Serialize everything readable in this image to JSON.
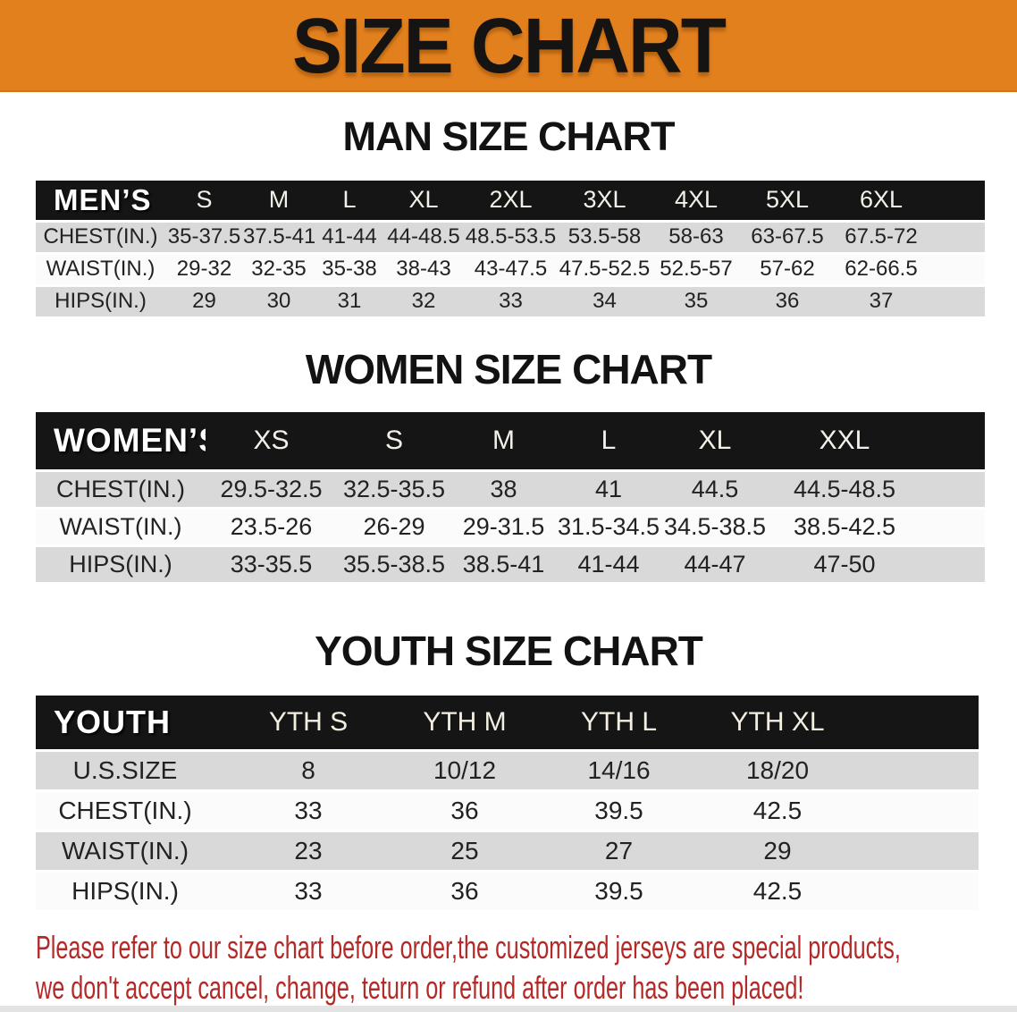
{
  "banner": {
    "title": "SIZE CHART",
    "bg_color": "#E2801E",
    "text_color": "#161412"
  },
  "sections": {
    "men_heading": "MAN SIZE CHART",
    "women_heading": "WOMEN SIZE CHART",
    "youth_heading": "YOUTH SIZE CHART"
  },
  "tables": {
    "men": {
      "header_label": "MEN’S",
      "sizes": [
        "S",
        "M",
        "L",
        "XL",
        "2XL",
        "3XL",
        "4XL",
        "5XL",
        "6XL"
      ],
      "rows": [
        {
          "label": "CHEST(IN.)",
          "values": [
            "35-37.5",
            "37.5-41",
            "41-44",
            "44-48.5",
            "48.5-53.5",
            "53.5-58",
            "58-63",
            "63-67.5",
            "67.5-72"
          ]
        },
        {
          "label": "WAIST(IN.)",
          "values": [
            "29-32",
            "32-35",
            "35-38",
            "38-43",
            "43-47.5",
            "47.5-52.5",
            "52.5-57",
            "57-62",
            "62-66.5"
          ]
        },
        {
          "label": "HIPS(IN.)",
          "values": [
            "29",
            "30",
            "31",
            "32",
            "33",
            "34",
            "35",
            "36",
            "37"
          ]
        }
      ]
    },
    "women": {
      "header_label": "WOMEN’S",
      "sizes": [
        "XS",
        "S",
        "M",
        "L",
        "XL",
        "XXL"
      ],
      "rows": [
        {
          "label": "CHEST(IN.)",
          "values": [
            "29.5-32.5",
            "32.5-35.5",
            "38",
            "41",
            "44.5",
            "44.5-48.5"
          ]
        },
        {
          "label": "WAIST(IN.)",
          "values": [
            "23.5-26",
            "26-29",
            "29-31.5",
            "31.5-34.5",
            "34.5-38.5",
            "38.5-42.5"
          ]
        },
        {
          "label": "HIPS(IN.)",
          "values": [
            "33-35.5",
            "35.5-38.5",
            "38.5-41",
            "41-44",
            "44-47",
            "47-50"
          ]
        }
      ]
    },
    "youth": {
      "header_label": "YOUTH",
      "sizes": [
        "YTH S",
        "YTH M",
        "YTH L",
        "YTH XL"
      ],
      "rows": [
        {
          "label": "U.S.SIZE",
          "values": [
            "8",
            "10/12",
            "14/16",
            "18/20"
          ]
        },
        {
          "label": "CHEST(IN.)",
          "values": [
            "33",
            "36",
            "39.5",
            "42.5"
          ]
        },
        {
          "label": "WAIST(IN.)",
          "values": [
            "23",
            "25",
            "27",
            "29"
          ]
        },
        {
          "label": "HIPS(IN.)",
          "values": [
            "33",
            "36",
            "39.5",
            "42.5"
          ]
        }
      ]
    }
  },
  "disclaimer": {
    "line1": "Please refer to our size chart before order,the customized jerseys are special products,",
    "line2": "we don't accept cancel, change, teturn or refund after order has been placed!",
    "color": "#B32A28"
  },
  "colors": {
    "table_header_bg": "#151515",
    "row_gray": "#D9D9D9",
    "row_white": "#FBFBFB"
  }
}
